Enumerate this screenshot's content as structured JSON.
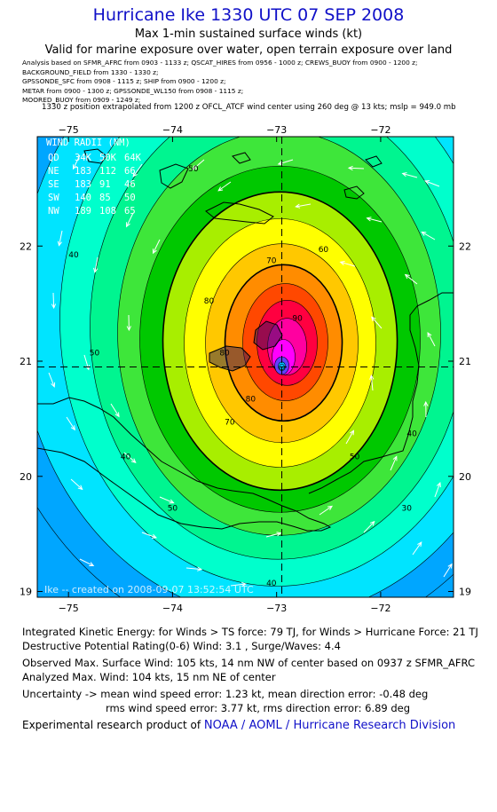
{
  "header": {
    "title": "Hurricane Ike 1330 UTC 07 SEP 2008",
    "subtitle": "Max 1-min sustained surface winds (kt)",
    "valid_for": "Valid for marine exposure over water, open terrain exposure over land",
    "analysis_lines": [
      "Analysis based on  SFMR_AFRC from 0903 - 1133 z;  QSCAT_HIRES from 0956 - 1000 z;  CREWS_BUOY from 0900 - 1200 z;",
      "BACKGROUND_FIELD from 1330 - 1330 z;",
      "GPSSONDE_SFC from 0908 - 1115 z;  SHIP from 0900 - 1200 z;",
      "METAR from 0900 - 1300 z;  GPSSONDE_WL150 from 0908 - 1115 z;",
      "MOORED_BUOY from 0909 - 1249 z;"
    ],
    "position_note": "1330 z position extrapolated from 1200 z OFCL_ATCF wind center using 260 deg @ 13 kts; mslp = 949.0 mb"
  },
  "map": {
    "lon_ticks": [
      -75,
      -74,
      -73,
      -72
    ],
    "lat_ticks": [
      19,
      20,
      21,
      22
    ],
    "lon_range": [
      -75.3,
      -71.3
    ],
    "lat_range": [
      18.95,
      22.95
    ],
    "center": {
      "lon": -72.95,
      "lat": 20.95
    },
    "contour_labels": [
      {
        "text": "30",
        "lon": -71.75,
        "lat": 19.7
      },
      {
        "text": "40",
        "lon": -74.95,
        "lat": 21.9
      },
      {
        "text": "40",
        "lon": -74.45,
        "lat": 20.15
      },
      {
        "text": "40",
        "lon": -71.7,
        "lat": 20.35
      },
      {
        "text": "40",
        "lon": -73.05,
        "lat": 19.05
      },
      {
        "text": "50",
        "lon": -74.75,
        "lat": 21.05
      },
      {
        "text": "50",
        "lon": -73.8,
        "lat": 22.65
      },
      {
        "text": "50",
        "lon": -72.25,
        "lat": 20.15
      },
      {
        "text": "50",
        "lon": -74.0,
        "lat": 19.7
      },
      {
        "text": "60",
        "lon": -72.55,
        "lat": 21.95
      },
      {
        "text": "70",
        "lon": -73.05,
        "lat": 21.85
      },
      {
        "text": "70",
        "lon": -73.45,
        "lat": 20.45
      },
      {
        "text": "80",
        "lon": -73.65,
        "lat": 21.5
      },
      {
        "text": "80",
        "lon": -73.25,
        "lat": 20.65
      },
      {
        "text": "90",
        "lon": -72.8,
        "lat": 21.35
      },
      {
        "text": "80",
        "lon": -73.5,
        "lat": 21.05
      }
    ],
    "wind_radii": {
      "title": "WIND RADII (NM)",
      "header": [
        "QD",
        "34K",
        "50K",
        "64K"
      ],
      "rows": [
        [
          "NE",
          "183",
          "112",
          "66"
        ],
        [
          "SE",
          "183",
          "91",
          "46"
        ],
        [
          "SW",
          "140",
          "85",
          "50"
        ],
        [
          "NW",
          "189",
          "108",
          "65"
        ]
      ]
    },
    "footer_note": "Ike -- created on 2008-09-07 13:52:54 UTC",
    "colors": {
      "ring_fill": [
        "#00a6ff",
        "#00e4ff",
        "#00ffcc",
        "#00f590",
        "#3ee63a",
        "#00c800",
        "#a8ee00",
        "#ffff00",
        "#ffc800",
        "#ff8c00",
        "#ff4800",
        "#ff0040",
        "#ff00a0",
        "#ff00ff",
        "#6040ff",
        "#00c0ff"
      ],
      "land": "#000000",
      "arrow": "#ffffff"
    }
  },
  "stats": {
    "ike_line": "Integrated Kinetic Energy:  for Winds > TS force: 79 TJ,  for Winds > Hurricane Force: 21 TJ",
    "dpr_line": "Destructive Potential Rating(0-6)   Wind: 3.1 , Surge/Waves: 4.4",
    "obs_max": "Observed Max. Surface Wind: 105 kts, 14 nm NW of center based on 0937 z SFMR_AFRC",
    "analyzed_max": "Analyzed Max. Wind: 104 kts, 15 nm NE of center",
    "uncert_1": "Uncertainty -> mean wind speed error: 1.23 kt,   mean direction error:  -0.48 deg",
    "uncert_2": "rms wind speed error: 3.77 kt,   rms direction error: 6.89 deg",
    "credit_prefix": "Experimental research product of ",
    "credit_link": "NOAA / AOML / Hurricane Research Division"
  }
}
